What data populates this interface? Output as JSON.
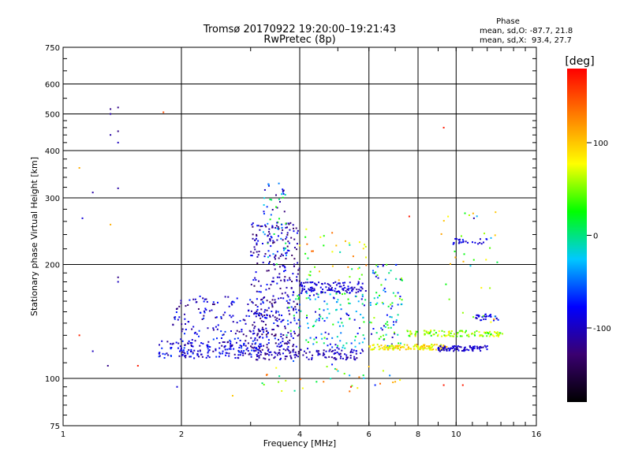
{
  "chart_data": {
    "type": "scatter",
    "title": "Tromsø 20170922 19:20:00–19:21:43",
    "subtitle": "RwPretec (8p)",
    "xlabel": "Frequency [MHz]",
    "ylabel": "Stationary phase Virtual Height [km]",
    "x_scale": "log",
    "y_scale": "log",
    "xlim": [
      1,
      16
    ],
    "ylim": [
      75,
      750
    ],
    "x_ticks": [
      1,
      2,
      4,
      6,
      8,
      10,
      16
    ],
    "y_ticks": [
      75,
      100,
      200,
      300,
      400,
      500,
      600,
      750
    ],
    "grid": true,
    "phase_info": {
      "title": "Phase",
      "line_o": "mean, sd,O: -87.7, 21.8",
      "line_x": "mean, sd,X:  93.4, 27.7"
    },
    "colorbar": {
      "label": "[deg]",
      "min": -180,
      "max": 180,
      "ticks": [
        100,
        0,
        -100
      ],
      "stops": [
        "#000000",
        "#3a0070",
        "#0000ff",
        "#00c8ff",
        "#00ff00",
        "#ffff00",
        "#ff8000",
        "#ff0000"
      ]
    },
    "point_clusters": [
      {
        "name": "low E trace",
        "x": [
          1.75,
          3.2
        ],
        "y": [
          113,
          126
        ],
        "n": 160,
        "phase": [
          -120,
          -60
        ]
      },
      {
        "name": "lower ridge",
        "x": [
          3.1,
          5.8
        ],
        "y": [
          112,
          120
        ],
        "n": 130,
        "phase": [
          -125,
          -85
        ]
      },
      {
        "name": "low scatter 2-3 MHz",
        "x": [
          1.9,
          3.6
        ],
        "y": [
          115,
          165
        ],
        "n": 200,
        "phase": [
          -130,
          -60
        ]
      },
      {
        "name": "spread F column",
        "x": [
          3.0,
          4.0
        ],
        "y": [
          120,
          260
        ],
        "n": 300,
        "phase": [
          -140,
          -70
        ]
      },
      {
        "name": "spread F top",
        "x": [
          3.2,
          3.7
        ],
        "y": [
          200,
          330
        ],
        "n": 60,
        "phase": [
          -130,
          40
        ]
      },
      {
        "name": "middle band",
        "x": [
          3.7,
          5.9
        ],
        "y": [
          120,
          170
        ],
        "n": 140,
        "phase": [
          -100,
          40
        ]
      },
      {
        "name": "F trace",
        "x": [
          4.0,
          5.9
        ],
        "y": [
          168,
          180
        ],
        "n": 110,
        "phase": [
          -110,
          -80
        ]
      },
      {
        "name": "sparse upper mid",
        "x": [
          4.0,
          6.0
        ],
        "y": [
          180,
          250
        ],
        "n": 40,
        "phase": [
          -20,
          140
        ]
      },
      {
        "name": "column 6-7 MHz",
        "x": [
          6.0,
          7.3
        ],
        "y": [
          120,
          200
        ],
        "n": 90,
        "phase": [
          -110,
          60
        ]
      },
      {
        "name": "X trace",
        "x": [
          6.0,
          9.5
        ],
        "y": [
          119,
          123
        ],
        "n": 140,
        "phase": [
          60,
          110
        ]
      },
      {
        "name": "O trace high f",
        "x": [
          9.0,
          12.0
        ],
        "y": [
          118,
          122
        ],
        "n": 80,
        "phase": [
          -110,
          -80
        ]
      },
      {
        "name": "X trace high f",
        "x": [
          7.5,
          13.2
        ],
        "y": [
          129,
          134
        ],
        "n": 110,
        "phase": [
          20,
          90
        ]
      },
      {
        "name": "blob near 12 MHz",
        "x": [
          11.2,
          12.8
        ],
        "y": [
          142,
          148
        ],
        "n": 30,
        "phase": [
          -110,
          -70
        ]
      },
      {
        "name": "line near 230 km",
        "x": [
          9.8,
          12.0
        ],
        "y": [
          226,
          234
        ],
        "n": 25,
        "phase": [
          -110,
          -70
        ]
      },
      {
        "name": "scatter 9-13 MHz",
        "x": [
          9.0,
          13.0
        ],
        "y": [
          140,
          280
        ],
        "n": 30,
        "phase": [
          -40,
          120
        ]
      },
      {
        "name": "sparse low",
        "x": [
          3.2,
          7.5
        ],
        "y": [
          92,
          112
        ],
        "n": 35,
        "phase": [
          -80,
          140
        ]
      }
    ],
    "points": [
      {
        "x": 1.1,
        "y": 360,
        "phase": 110
      },
      {
        "x": 1.12,
        "y": 265,
        "phase": -90
      },
      {
        "x": 1.19,
        "y": 310,
        "phase": -110
      },
      {
        "x": 1.19,
        "y": 118,
        "phase": -100
      },
      {
        "x": 1.1,
        "y": 130,
        "phase": 165
      },
      {
        "x": 1.32,
        "y": 515,
        "phase": -120
      },
      {
        "x": 1.32,
        "y": 500,
        "phase": -110
      },
      {
        "x": 1.38,
        "y": 520,
        "phase": -120
      },
      {
        "x": 1.32,
        "y": 440,
        "phase": -110
      },
      {
        "x": 1.38,
        "y": 450,
        "phase": -120
      },
      {
        "x": 1.38,
        "y": 420,
        "phase": -100
      },
      {
        "x": 1.38,
        "y": 318,
        "phase": -110
      },
      {
        "x": 1.38,
        "y": 185,
        "phase": -120
      },
      {
        "x": 1.38,
        "y": 180,
        "phase": -100
      },
      {
        "x": 1.3,
        "y": 108,
        "phase": -120
      },
      {
        "x": 1.32,
        "y": 255,
        "phase": 110
      },
      {
        "x": 1.55,
        "y": 108,
        "phase": 170
      },
      {
        "x": 1.8,
        "y": 505,
        "phase": 150
      },
      {
        "x": 1.95,
        "y": 95,
        "phase": -90
      },
      {
        "x": 2.7,
        "y": 90,
        "phase": 100
      },
      {
        "x": 9.3,
        "y": 460,
        "phase": 170
      },
      {
        "x": 9.3,
        "y": 96,
        "phase": 170
      },
      {
        "x": 10.4,
        "y": 96,
        "phase": 170
      },
      {
        "x": 10.8,
        "y": 270,
        "phase": 60
      },
      {
        "x": 11.1,
        "y": 265,
        "phase": -110
      },
      {
        "x": 12.6,
        "y": 275,
        "phase": 100
      },
      {
        "x": 7.6,
        "y": 268,
        "phase": 170
      },
      {
        "x": 5.4,
        "y": 95,
        "phase": 170
      },
      {
        "x": 7.0,
        "y": 98,
        "phase": 110
      },
      {
        "x": 4.6,
        "y": 98,
        "phase": 130
      }
    ]
  }
}
